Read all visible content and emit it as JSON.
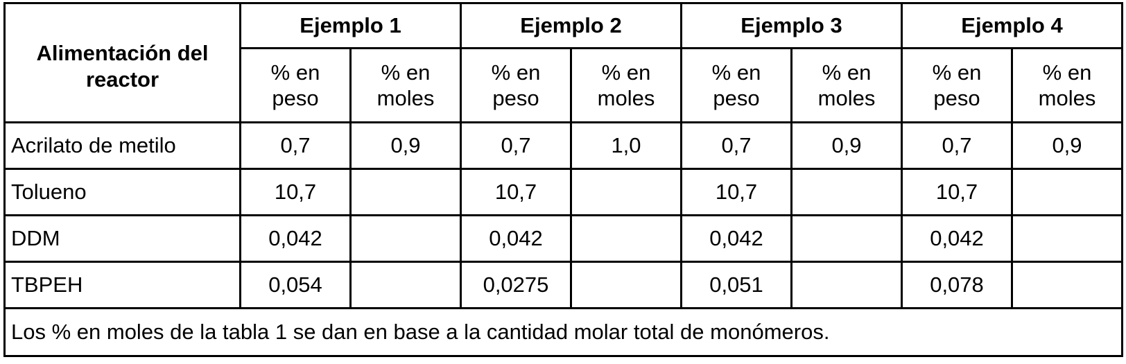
{
  "table": {
    "row_header": "Alimentación del reactor",
    "groups": [
      {
        "name": "Ejemplo 1",
        "columns": [
          "% en peso",
          "% en moles"
        ]
      },
      {
        "name": "Ejemplo 2",
        "columns": [
          "% en peso",
          "% en moles"
        ]
      },
      {
        "name": "Ejemplo 3",
        "columns": [
          "% en peso",
          "% en moles"
        ]
      },
      {
        "name": "Ejemplo 4",
        "columns": [
          "% en peso",
          "% en moles"
        ]
      }
    ],
    "rows": [
      {
        "label": "Acrilato de metilo",
        "values": [
          "0,7",
          "0,9",
          "0,7",
          "1,0",
          "0,7",
          "0,9",
          "0,7",
          "0,9"
        ]
      },
      {
        "label": "Tolueno",
        "values": [
          "10,7",
          null,
          "10,7",
          null,
          "10,7",
          null,
          "10,7",
          null
        ]
      },
      {
        "label": "DDM",
        "values": [
          "0,042",
          null,
          "0,042",
          null,
          "0,042",
          null,
          "0,042",
          null
        ]
      },
      {
        "label": "TBPEH",
        "values": [
          "0,054",
          null,
          "0,0275",
          null,
          "0,051",
          null,
          "0,078",
          null
        ]
      }
    ],
    "note": "Los % en moles de la tabla 1 se dan en base a la cantidad molar total de monómeros."
  }
}
